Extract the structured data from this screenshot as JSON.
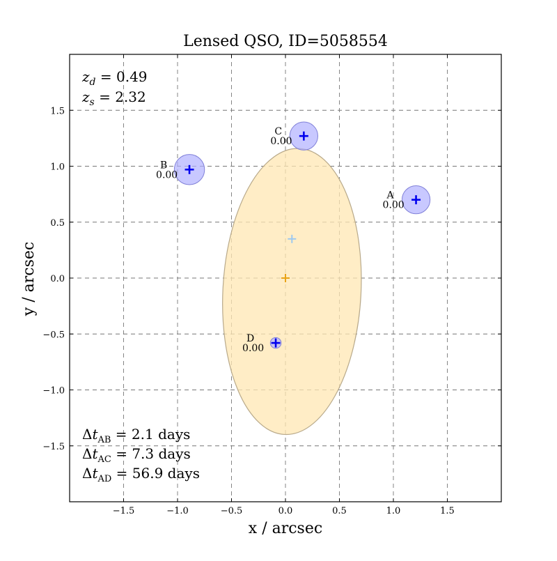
{
  "chart_data": {
    "type": "scatter",
    "title": "Lensed QSO, ID=5058554",
    "xlabel": "x / arcsec",
    "ylabel": "y / arcsec",
    "xlim": [
      -2.0,
      2.0
    ],
    "ylim": [
      -2.0,
      2.0
    ],
    "xticks": [
      -1.5,
      -1.0,
      -0.5,
      0.0,
      0.5,
      1.0,
      1.5
    ],
    "yticks": [
      -1.5,
      -1.0,
      -0.5,
      0.0,
      0.5,
      1.0,
      1.5
    ],
    "xtick_labels": [
      "−1.5",
      "−1.0",
      "−0.5",
      "0.0",
      "0.5",
      "1.0",
      "1.5"
    ],
    "ytick_labels": [
      "−1.5",
      "−1.0",
      "−0.5",
      "0.0",
      "0.5",
      "1.0",
      "1.5"
    ],
    "grid": true,
    "redshifts": [
      {
        "sym": "z",
        "sub": "d",
        "value": "= 0.49"
      },
      {
        "sym": "z",
        "sub": "s",
        "value": "= 2.32"
      }
    ],
    "time_delays": [
      {
        "sub": "AB",
        "value": "= 2.1 days"
      },
      {
        "sub": "AC",
        "value": "= 7.3 days"
      },
      {
        "sub": "AD",
        "value": "= 56.9 days"
      }
    ],
    "lens": {
      "x": 0.0,
      "y": 0.0,
      "center_color": "#e8a317",
      "fill": "#ffe7b3"
    },
    "lens_ellipse": {
      "x": 0.06,
      "y": -0.12,
      "semi_major": 1.28,
      "semi_minor": 0.64,
      "angle_deg": 3
    },
    "source": {
      "x": 0.06,
      "y": 0.35,
      "color": "#9ec9ef"
    },
    "images": [
      {
        "name": "A",
        "x": 1.21,
        "y": 0.7,
        "radius": 0.13,
        "mag_label": "0.00"
      },
      {
        "name": "B",
        "x": -0.89,
        "y": 0.97,
        "radius": 0.14,
        "mag_label": "0.00"
      },
      {
        "name": "C",
        "x": 0.17,
        "y": 1.27,
        "radius": 0.13,
        "mag_label": "0.00"
      },
      {
        "name": "D",
        "x": -0.09,
        "y": -0.58,
        "radius": 0.05,
        "mag_label": "0.00"
      }
    ],
    "image_color": "#0000ee",
    "image_fill": "#b0b0ff"
  }
}
